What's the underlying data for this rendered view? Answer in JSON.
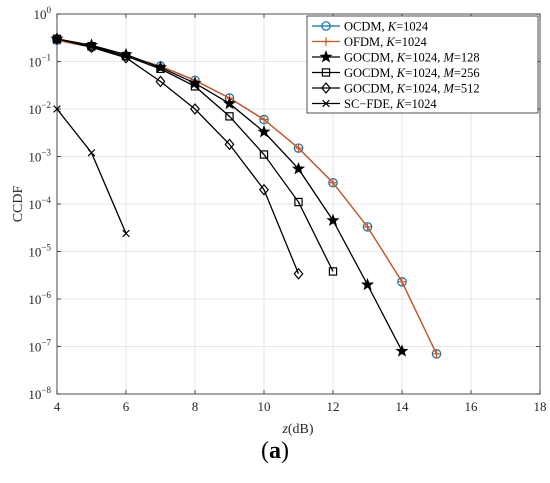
{
  "chart_data": {
    "type": "line",
    "xlabel_italic": "z",
    "xlabel_unit": "(dB)",
    "ylabel": "CCDF",
    "xlim": [
      4,
      18
    ],
    "xticks": [
      4,
      6,
      8,
      10,
      12,
      14,
      16,
      18
    ],
    "ylim": [
      1e-08,
      1
    ],
    "yscale": "log",
    "ytick_exponents": [
      0,
      -1,
      -2,
      -3,
      -4,
      -5,
      -6,
      -7,
      -8
    ],
    "grid": true,
    "legend_placement": "top-right",
    "series": [
      {
        "name": "OCDM, K=1024",
        "name_parts": [
          "OCDM, ",
          "K",
          "=1024"
        ],
        "color": "#0072BD",
        "marker": "circle",
        "x": [
          4,
          5,
          6,
          7,
          8,
          9,
          10,
          11,
          12,
          13,
          14,
          15
        ],
        "y": [
          0.28,
          0.2,
          0.13,
          0.08,
          0.04,
          0.017,
          0.006,
          0.0015,
          0.00028,
          3.3e-05,
          2.3e-06,
          7e-08
        ]
      },
      {
        "name": "OFDM, K=1024",
        "name_parts": [
          "OFDM, ",
          "K",
          "=1024"
        ],
        "color": "#D95319",
        "marker": "plus",
        "x": [
          4,
          5,
          6,
          7,
          8,
          9,
          10,
          11,
          12,
          13,
          14,
          15
        ],
        "y": [
          0.28,
          0.2,
          0.13,
          0.08,
          0.04,
          0.017,
          0.006,
          0.0015,
          0.00028,
          3.3e-05,
          2.3e-06,
          7e-08
        ]
      },
      {
        "name": "GOCDM, K=1024, M=128",
        "name_parts": [
          "GOCDM, ",
          "K",
          "=1024, ",
          "M",
          "=128"
        ],
        "color": "#000000",
        "marker": "star",
        "x": [
          4,
          5,
          6,
          7,
          8,
          9,
          10,
          11,
          12,
          13,
          14
        ],
        "y": [
          0.3,
          0.22,
          0.14,
          0.075,
          0.035,
          0.013,
          0.0033,
          0.00055,
          4.5e-05,
          2e-06,
          8e-08
        ]
      },
      {
        "name": "GOCDM, K=1024, M=256",
        "name_parts": [
          "GOCDM, ",
          "K",
          "=1024, ",
          "M",
          "=256"
        ],
        "color": "#000000",
        "marker": "square",
        "x": [
          4,
          5,
          6,
          7,
          8,
          9,
          10,
          11,
          12
        ],
        "y": [
          0.3,
          0.21,
          0.13,
          0.07,
          0.03,
          0.007,
          0.0011,
          0.00011,
          3.8e-06
        ]
      },
      {
        "name": "GOCDM, K=1024, M=512",
        "name_parts": [
          "GOCDM, ",
          "K",
          "=1024, ",
          "M",
          "=512"
        ],
        "color": "#000000",
        "marker": "diamond",
        "x": [
          4,
          5,
          6,
          7,
          8,
          9,
          10,
          11
        ],
        "y": [
          0.3,
          0.2,
          0.12,
          0.038,
          0.01,
          0.0018,
          0.0002,
          3.4e-06
        ]
      },
      {
        "name": "SC-FDE, K=1024",
        "name_parts": [
          "SC−FDE, ",
          "K",
          "=1024"
        ],
        "color": "#000000",
        "marker": "x",
        "x": [
          4,
          5,
          6
        ],
        "y": [
          0.01,
          0.0012,
          2.4e-05
        ]
      }
    ]
  },
  "caption": {
    "open": "(",
    "letter": "a",
    "close": ")"
  }
}
